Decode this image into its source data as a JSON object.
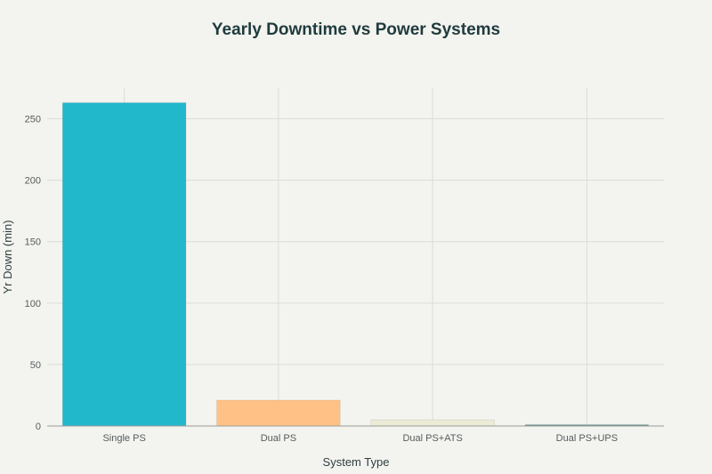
{
  "chart_data": {
    "type": "bar",
    "title": "Yearly Downtime vs Power Systems",
    "xlabel": "System Type",
    "ylabel": "Yr Down (min)",
    "categories": [
      "Single PS",
      "Dual PS",
      "Dual PS+ATS",
      "Dual PS+UPS"
    ],
    "values": [
      263,
      21,
      5,
      1
    ],
    "ylim": [
      0,
      275
    ],
    "yticks": [
      0,
      50,
      100,
      150,
      200,
      250
    ],
    "grid": true,
    "legend": "none",
    "colors": [
      "#21b8cc",
      "#ffc185",
      "#ecebd5",
      "#5e8c8c"
    ]
  }
}
